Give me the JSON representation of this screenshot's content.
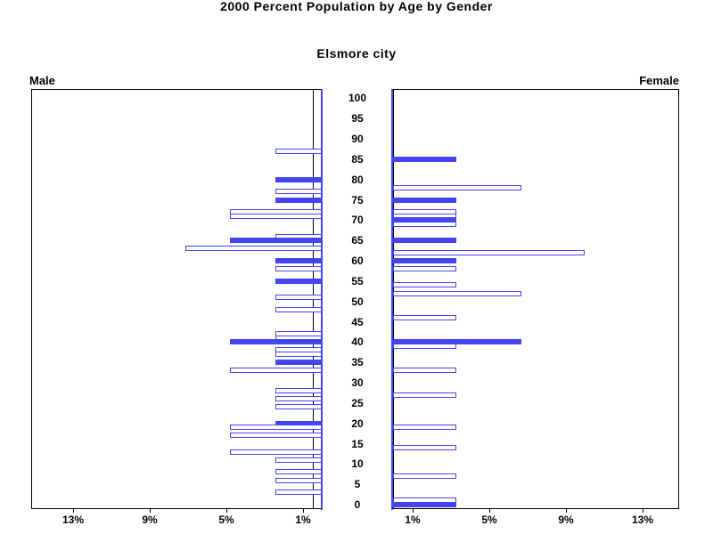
{
  "chart_data": {
    "type": "bar",
    "variant": "population_pyramid",
    "title": "2000 Percent Population by Age by Gender",
    "subtitle": "Elsmore city",
    "left_header": "Male",
    "right_header": "Female",
    "age_axis": {
      "min": 0,
      "max": 100,
      "step": 5
    },
    "percent_axis": {
      "ticks": [
        1,
        5,
        9,
        13
      ],
      "suffix": "%",
      "max": 15
    },
    "bar_color": "#4444f2",
    "frame_color": "#000000",
    "legend_position": "none",
    "grid": false,
    "series": [
      {
        "name": "Male",
        "side": "left",
        "bars": [
          {
            "age": 87,
            "pct": 2.4,
            "filled": false
          },
          {
            "age": 80,
            "pct": 2.4,
            "filled": true
          },
          {
            "age": 77,
            "pct": 2.4,
            "filled": false
          },
          {
            "age": 75,
            "pct": 2.4,
            "filled": true
          },
          {
            "age": 72,
            "pct": 4.8,
            "filled": false
          },
          {
            "age": 71,
            "pct": 4.8,
            "filled": false
          },
          {
            "age": 66,
            "pct": 2.4,
            "filled": false
          },
          {
            "age": 65,
            "pct": 4.8,
            "filled": true
          },
          {
            "age": 63,
            "pct": 7.1,
            "filled": false
          },
          {
            "age": 60,
            "pct": 2.4,
            "filled": true
          },
          {
            "age": 58,
            "pct": 2.4,
            "filled": false
          },
          {
            "age": 55,
            "pct": 2.4,
            "filled": true
          },
          {
            "age": 51,
            "pct": 2.4,
            "filled": false
          },
          {
            "age": 48,
            "pct": 2.4,
            "filled": false
          },
          {
            "age": 42,
            "pct": 2.4,
            "filled": false
          },
          {
            "age": 41,
            "pct": 2.4,
            "filled": false
          },
          {
            "age": 40,
            "pct": 4.8,
            "filled": true
          },
          {
            "age": 38,
            "pct": 2.4,
            "filled": false
          },
          {
            "age": 37,
            "pct": 2.4,
            "filled": false
          },
          {
            "age": 35,
            "pct": 2.4,
            "filled": true
          },
          {
            "age": 33,
            "pct": 4.8,
            "filled": false
          },
          {
            "age": 28,
            "pct": 2.4,
            "filled": false
          },
          {
            "age": 26,
            "pct": 2.4,
            "filled": false
          },
          {
            "age": 24,
            "pct": 2.4,
            "filled": false
          },
          {
            "age": 20,
            "pct": 2.4,
            "filled": true
          },
          {
            "age": 19,
            "pct": 4.8,
            "filled": false
          },
          {
            "age": 17,
            "pct": 4.8,
            "filled": false
          },
          {
            "age": 13,
            "pct": 4.8,
            "filled": false
          },
          {
            "age": 11,
            "pct": 2.4,
            "filled": false
          },
          {
            "age": 8,
            "pct": 2.4,
            "filled": false
          },
          {
            "age": 6,
            "pct": 2.4,
            "filled": false
          },
          {
            "age": 3,
            "pct": 2.4,
            "filled": false
          }
        ]
      },
      {
        "name": "Female",
        "side": "right",
        "bars": [
          {
            "age": 85,
            "pct": 3.3,
            "filled": true
          },
          {
            "age": 78,
            "pct": 6.7,
            "filled": false
          },
          {
            "age": 75,
            "pct": 3.3,
            "filled": true
          },
          {
            "age": 72,
            "pct": 3.3,
            "filled": false
          },
          {
            "age": 71,
            "pct": 3.3,
            "filled": false
          },
          {
            "age": 70,
            "pct": 3.3,
            "filled": true
          },
          {
            "age": 69,
            "pct": 3.3,
            "filled": false
          },
          {
            "age": 65,
            "pct": 3.3,
            "filled": true
          },
          {
            "age": 62,
            "pct": 10.0,
            "filled": false
          },
          {
            "age": 60,
            "pct": 3.3,
            "filled": true
          },
          {
            "age": 58,
            "pct": 3.3,
            "filled": false
          },
          {
            "age": 54,
            "pct": 3.3,
            "filled": false
          },
          {
            "age": 52,
            "pct": 6.7,
            "filled": false
          },
          {
            "age": 46,
            "pct": 3.3,
            "filled": false
          },
          {
            "age": 40,
            "pct": 6.7,
            "filled": true
          },
          {
            "age": 39,
            "pct": 3.3,
            "filled": false
          },
          {
            "age": 33,
            "pct": 3.3,
            "filled": false
          },
          {
            "age": 27,
            "pct": 3.3,
            "filled": false
          },
          {
            "age": 19,
            "pct": 3.3,
            "filled": false
          },
          {
            "age": 14,
            "pct": 3.3,
            "filled": false
          },
          {
            "age": 7,
            "pct": 3.3,
            "filled": false
          },
          {
            "age": 1,
            "pct": 3.3,
            "filled": false
          },
          {
            "age": 0,
            "pct": 3.3,
            "filled": true
          }
        ]
      }
    ]
  }
}
